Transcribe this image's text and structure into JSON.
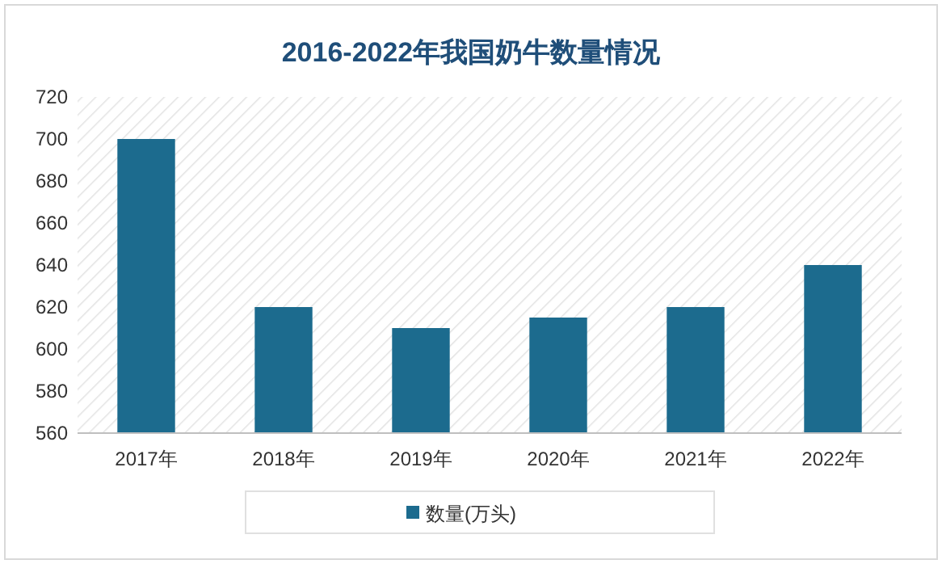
{
  "chart_data": {
    "type": "bar",
    "title": "2016-2022年我国奶牛数量情况",
    "categories": [
      "2017年",
      "2018年",
      "2019年",
      "2020年",
      "2021年",
      "2022年"
    ],
    "series": [
      {
        "name": "数量(万头)",
        "color": "#1c6b8e",
        "values": [
          700,
          620,
          610,
          615,
          620,
          640
        ]
      }
    ],
    "ylim": [
      560,
      720
    ],
    "yticks": [
      560,
      580,
      600,
      620,
      640,
      660,
      680,
      700,
      720
    ],
    "legend": "bottom"
  }
}
